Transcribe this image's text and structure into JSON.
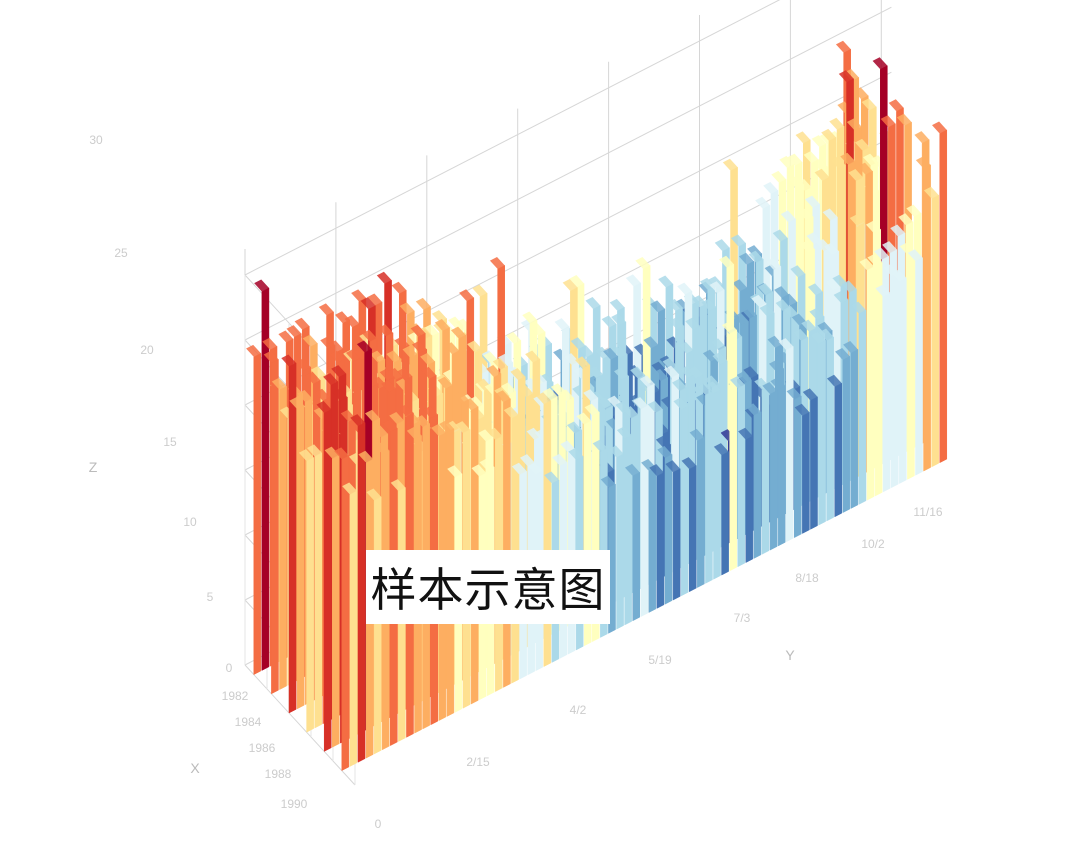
{
  "chart_data": {
    "type": "bar3d",
    "x_ticks": [
      "1982",
      "1984",
      "1986",
      "1988",
      "1990"
    ],
    "y_ticks": [
      "0",
      "2/15",
      "4/2",
      "5/19",
      "7/3",
      "8/18",
      "10/2",
      "11/16"
    ],
    "z_ticks": [
      "0",
      "5",
      "10",
      "15",
      "20",
      "25",
      "30"
    ],
    "axis_names": {
      "x": "X",
      "y": "Y",
      "z": "Z"
    },
    "z_range": [
      0,
      30
    ],
    "color_scale": [
      "#313695",
      "#4575b4",
      "#74add1",
      "#abd9e9",
      "#e0f3f8",
      "#ffffbf",
      "#fee090",
      "#fdae61",
      "#f46d43",
      "#d73027",
      "#a50026"
    ],
    "grid": true,
    "profile": {
      "day": [
        0,
        30,
        60,
        92,
        122,
        152,
        183,
        214,
        244,
        275,
        305,
        335,
        365
      ],
      "z": [
        23,
        22,
        21,
        18,
        14,
        12,
        11,
        11,
        13,
        18,
        23,
        25,
        24
      ]
    }
  },
  "watermark": "样本示意图"
}
